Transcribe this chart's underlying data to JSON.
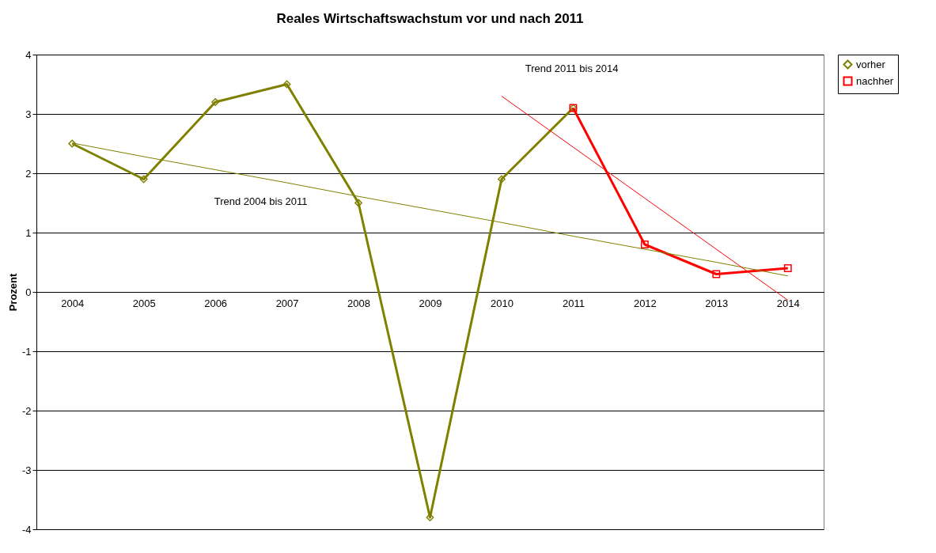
{
  "chart_data": {
    "type": "line",
    "title": "Reales Wirtschaftswachstum vor und nach 2011",
    "ylabel": "Prozent",
    "categories": [
      "2004",
      "2005",
      "2006",
      "2007",
      "2008",
      "2009",
      "2010",
      "2011",
      "2012",
      "2013",
      "2014"
    ],
    "series": [
      {
        "name": "vorher",
        "color": "#808000",
        "marker": "diamond",
        "values": [
          2.5,
          1.9,
          3.2,
          3.5,
          1.5,
          -3.8,
          1.9,
          3.1,
          null,
          null,
          null
        ]
      },
      {
        "name": "nachher",
        "color": "#ff0000",
        "marker": "square",
        "values": [
          null,
          null,
          null,
          null,
          null,
          null,
          null,
          3.1,
          0.8,
          0.3,
          0.4
        ]
      },
      {
        "type": "line",
        "color": "#808000",
        "values": [
          2.51,
          2.28,
          2.06,
          1.84,
          1.61,
          1.39,
          1.17,
          0.94,
          0.72,
          0.5,
          0.27
        ]
      },
      {
        "type": "line",
        "color": "#ff0000",
        "values": [
          null,
          null,
          null,
          null,
          null,
          null,
          3.3,
          2.44,
          1.58,
          0.72,
          -0.14
        ]
      }
    ],
    "annotations": [
      "Trend 2004 bis 2011",
      "Trend 2011 bis 2014"
    ],
    "ylim": [
      -4,
      4
    ],
    "yticks": [
      -4,
      -3,
      -2,
      -1,
      0,
      1,
      2,
      3,
      4
    ],
    "grid": "y",
    "legend": "right"
  }
}
